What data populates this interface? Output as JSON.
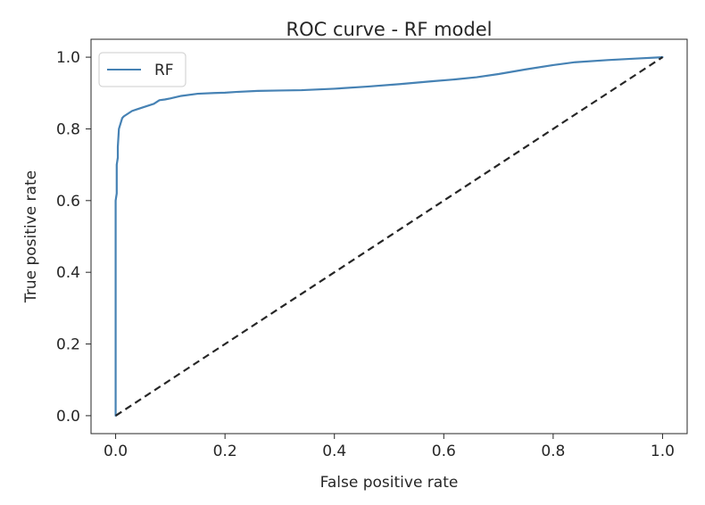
{
  "chart_data": {
    "type": "line",
    "title": "ROC curve - RF model",
    "xlabel": "False positive rate",
    "ylabel": "True positive rate",
    "xlim": [
      -0.045,
      1.045
    ],
    "ylim": [
      -0.05,
      1.05
    ],
    "xticks": [
      "0.0",
      "0.2",
      "0.4",
      "0.6",
      "0.8",
      "1.0"
    ],
    "yticks": [
      "0.0",
      "0.2",
      "0.4",
      "0.6",
      "0.8",
      "1.0"
    ],
    "grid": false,
    "legend_position": "upper-left",
    "series": [
      {
        "name": "RF",
        "color": "#4682b4",
        "style": "solid",
        "x": [
          0.0,
          0.0,
          0.002,
          0.002,
          0.004,
          0.004,
          0.006,
          0.008,
          0.01,
          0.012,
          0.015,
          0.02,
          0.025,
          0.03,
          0.04,
          0.05,
          0.06,
          0.07,
          0.08,
          0.09,
          0.1,
          0.12,
          0.15,
          0.18,
          0.2,
          0.22,
          0.26,
          0.3,
          0.34,
          0.4,
          0.46,
          0.52,
          0.58,
          0.62,
          0.66,
          0.7,
          0.75,
          0.8,
          0.84,
          0.9,
          0.95,
          1.0
        ],
        "y": [
          0.0,
          0.6,
          0.62,
          0.7,
          0.72,
          0.75,
          0.8,
          0.81,
          0.82,
          0.83,
          0.835,
          0.84,
          0.845,
          0.85,
          0.855,
          0.86,
          0.865,
          0.87,
          0.88,
          0.882,
          0.885,
          0.892,
          0.898,
          0.9,
          0.901,
          0.903,
          0.906,
          0.907,
          0.908,
          0.912,
          0.918,
          0.925,
          0.933,
          0.938,
          0.944,
          0.953,
          0.966,
          0.978,
          0.986,
          0.992,
          0.996,
          1.0
        ]
      },
      {
        "name": "",
        "color": "#262626",
        "style": "dashed",
        "x": [
          0.0,
          1.0
        ],
        "y": [
          0.0,
          1.0
        ]
      }
    ]
  }
}
